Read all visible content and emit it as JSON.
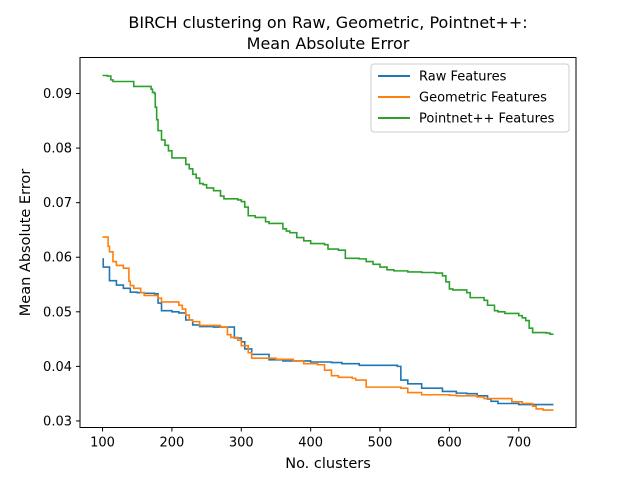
{
  "chart_data": {
    "type": "line",
    "title": [
      "BIRCH clustering on Raw, Geometric, Pointnet++:",
      "Mean Absolute Error"
    ],
    "xlabel": "No. clusters",
    "ylabel": "Mean Absolute Error",
    "xlim": [
      67.5,
      782.5
    ],
    "ylim": [
      0.0288,
      0.0966
    ],
    "xticks": [
      100,
      200,
      300,
      400,
      500,
      600,
      700
    ],
    "yticks": [
      0.03,
      0.04,
      0.05,
      0.06,
      0.07,
      0.08,
      0.09
    ],
    "grid": false,
    "legend_position": "top-right",
    "step": "post",
    "series": [
      {
        "name": "Raw Features",
        "color": "#1f77b4",
        "points": [
          [
            100,
            0.0597
          ],
          [
            101,
            0.0582
          ],
          [
            110,
            0.0557
          ],
          [
            120,
            0.0549
          ],
          [
            130,
            0.0543
          ],
          [
            140,
            0.0536
          ],
          [
            150,
            0.0535
          ],
          [
            160,
            0.0534
          ],
          [
            175,
            0.0533
          ],
          [
            180,
            0.0516
          ],
          [
            185,
            0.0502
          ],
          [
            200,
            0.05
          ],
          [
            210,
            0.0498
          ],
          [
            220,
            0.0485
          ],
          [
            230,
            0.0476
          ],
          [
            240,
            0.0473
          ],
          [
            260,
            0.0472
          ],
          [
            272,
            0.0472
          ],
          [
            290,
            0.0452
          ],
          [
            300,
            0.0445
          ],
          [
            305,
            0.0432
          ],
          [
            315,
            0.0422
          ],
          [
            340,
            0.0412
          ],
          [
            360,
            0.041
          ],
          [
            380,
            0.041
          ],
          [
            400,
            0.0408
          ],
          [
            430,
            0.0407
          ],
          [
            445,
            0.0405
          ],
          [
            470,
            0.0402
          ],
          [
            500,
            0.0402
          ],
          [
            525,
            0.04
          ],
          [
            530,
            0.0375
          ],
          [
            540,
            0.0368
          ],
          [
            560,
            0.036
          ],
          [
            590,
            0.0354
          ],
          [
            610,
            0.0351
          ],
          [
            625,
            0.035
          ],
          [
            640,
            0.0346
          ],
          [
            655,
            0.034
          ],
          [
            660,
            0.0336
          ],
          [
            670,
            0.0332
          ],
          [
            700,
            0.033
          ],
          [
            750,
            0.033
          ]
        ]
      },
      {
        "name": "Geometric Features",
        "color": "#ff7f0e",
        "points": [
          [
            100,
            0.0637
          ],
          [
            108,
            0.062
          ],
          [
            110,
            0.061
          ],
          [
            115,
            0.0592
          ],
          [
            120,
            0.0585
          ],
          [
            130,
            0.058
          ],
          [
            138,
            0.0556
          ],
          [
            140,
            0.0548
          ],
          [
            145,
            0.0543
          ],
          [
            155,
            0.0535
          ],
          [
            160,
            0.053
          ],
          [
            180,
            0.0525
          ],
          [
            185,
            0.0518
          ],
          [
            210,
            0.0512
          ],
          [
            215,
            0.0505
          ],
          [
            220,
            0.0494
          ],
          [
            225,
            0.0485
          ],
          [
            230,
            0.0482
          ],
          [
            240,
            0.0475
          ],
          [
            270,
            0.0472
          ],
          [
            280,
            0.0458
          ],
          [
            285,
            0.0453
          ],
          [
            295,
            0.0448
          ],
          [
            300,
            0.0438
          ],
          [
            310,
            0.0425
          ],
          [
            315,
            0.0415
          ],
          [
            350,
            0.0413
          ],
          [
            375,
            0.041
          ],
          [
            390,
            0.0405
          ],
          [
            410,
            0.0403
          ],
          [
            420,
            0.0393
          ],
          [
            430,
            0.0383
          ],
          [
            440,
            0.038
          ],
          [
            450,
            0.038
          ],
          [
            460,
            0.0378
          ],
          [
            465,
            0.0375
          ],
          [
            480,
            0.0362
          ],
          [
            530,
            0.036
          ],
          [
            540,
            0.0352
          ],
          [
            560,
            0.0348
          ],
          [
            600,
            0.0347
          ],
          [
            610,
            0.0346
          ],
          [
            625,
            0.0346
          ],
          [
            640,
            0.0344
          ],
          [
            650,
            0.0341
          ],
          [
            690,
            0.0335
          ],
          [
            705,
            0.0332
          ],
          [
            720,
            0.0327
          ],
          [
            725,
            0.0322
          ],
          [
            735,
            0.032
          ],
          [
            750,
            0.032
          ]
        ]
      },
      {
        "name": "Pointnet++ Features",
        "color": "#2ca02c",
        "points": [
          [
            100,
            0.0933
          ],
          [
            107,
            0.0932
          ],
          [
            112,
            0.0925
          ],
          [
            115,
            0.0922
          ],
          [
            145,
            0.0913
          ],
          [
            170,
            0.0908
          ],
          [
            172,
            0.0902
          ],
          [
            175,
            0.09
          ],
          [
            176,
            0.0875
          ],
          [
            178,
            0.0852
          ],
          [
            180,
            0.0832
          ],
          [
            185,
            0.0815
          ],
          [
            190,
            0.0805
          ],
          [
            195,
            0.0795
          ],
          [
            200,
            0.0782
          ],
          [
            220,
            0.077
          ],
          [
            225,
            0.0762
          ],
          [
            230,
            0.0752
          ],
          [
            235,
            0.0745
          ],
          [
            240,
            0.0735
          ],
          [
            245,
            0.0733
          ],
          [
            250,
            0.0727
          ],
          [
            260,
            0.0722
          ],
          [
            270,
            0.0712
          ],
          [
            275,
            0.0707
          ],
          [
            295,
            0.0705
          ],
          [
            300,
            0.0702
          ],
          [
            305,
            0.0692
          ],
          [
            310,
            0.0676
          ],
          [
            320,
            0.0673
          ],
          [
            335,
            0.0665
          ],
          [
            340,
            0.0662
          ],
          [
            360,
            0.0652
          ],
          [
            365,
            0.0648
          ],
          [
            370,
            0.0645
          ],
          [
            380,
            0.0636
          ],
          [
            390,
            0.063
          ],
          [
            400,
            0.0625
          ],
          [
            420,
            0.0623
          ],
          [
            425,
            0.0615
          ],
          [
            440,
            0.0613
          ],
          [
            450,
            0.0598
          ],
          [
            470,
            0.0597
          ],
          [
            480,
            0.0592
          ],
          [
            490,
            0.0587
          ],
          [
            500,
            0.0582
          ],
          [
            510,
            0.0577
          ],
          [
            520,
            0.0575
          ],
          [
            540,
            0.0573
          ],
          [
            560,
            0.0572
          ],
          [
            580,
            0.0571
          ],
          [
            590,
            0.0566
          ],
          [
            595,
            0.0555
          ],
          [
            600,
            0.0542
          ],
          [
            605,
            0.054
          ],
          [
            625,
            0.0535
          ],
          [
            630,
            0.0526
          ],
          [
            650,
            0.0521
          ],
          [
            655,
            0.0512
          ],
          [
            665,
            0.0502
          ],
          [
            670,
            0.05
          ],
          [
            680,
            0.0497
          ],
          [
            700,
            0.0493
          ],
          [
            705,
            0.0489
          ],
          [
            710,
            0.0484
          ],
          [
            715,
            0.047
          ],
          [
            720,
            0.0462
          ],
          [
            740,
            0.0461
          ],
          [
            745,
            0.0459
          ],
          [
            750,
            0.0459
          ]
        ]
      }
    ]
  }
}
